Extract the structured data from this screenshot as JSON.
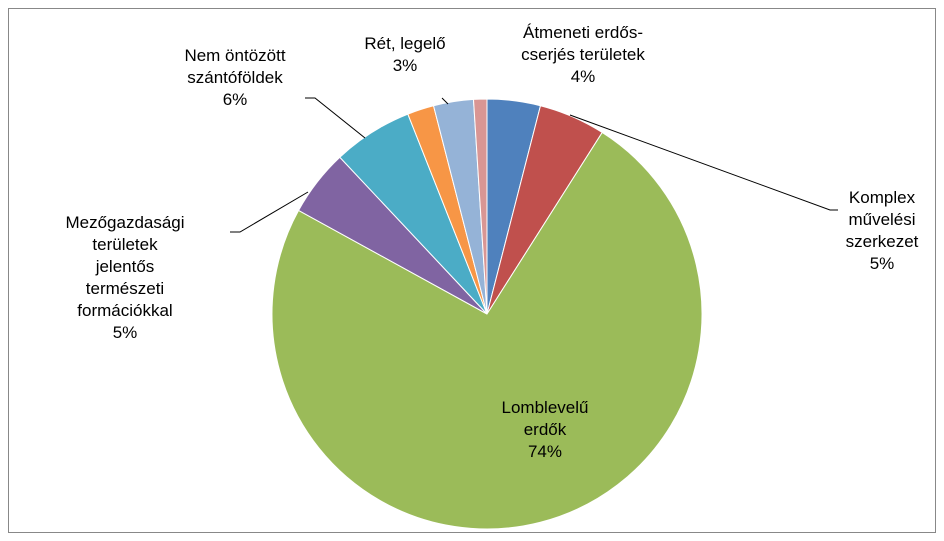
{
  "chart_data": {
    "type": "pie",
    "categories": [
      "Átmeneti erdős-\ncserjés területek",
      "Komplex\nművelési\nszerkezet",
      "Lomblevelű\nerdők",
      "Mezőgazdasági\nterületek\njelentős\ntermészeti\nformációkkal",
      "Nem öntözött\nszántóföldek",
      null,
      "Rét, legelő",
      null
    ],
    "values": [
      4,
      5,
      74,
      5,
      6,
      2,
      3,
      1
    ],
    "value_labels": [
      "4%",
      "5%",
      "74%",
      "5%",
      "6%",
      null,
      "3%",
      null
    ],
    "colors": [
      "#4f81bd",
      "#c0504d",
      "#9bbb59",
      "#8064a2",
      "#4bacc6",
      "#f79646",
      "#95b3d7",
      "#d99694"
    ]
  }
}
